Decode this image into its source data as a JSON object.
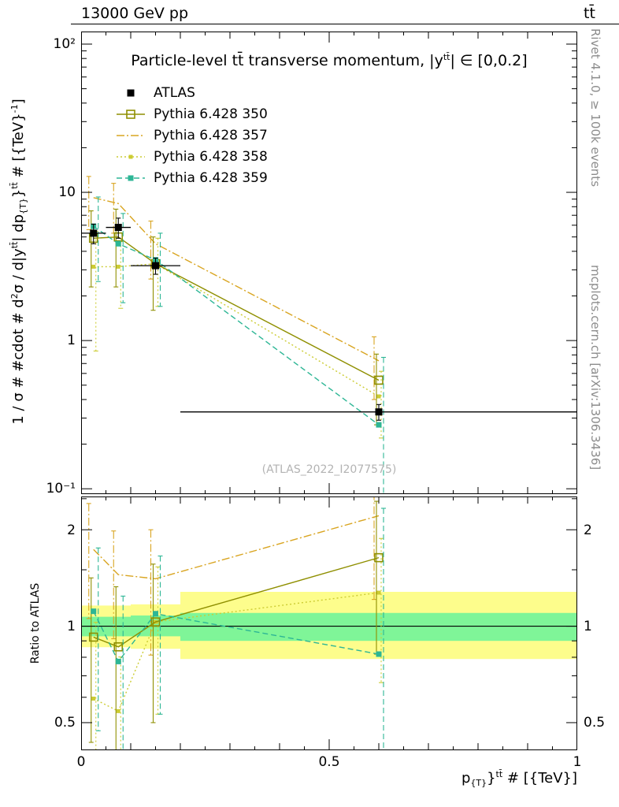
{
  "header": {
    "left": "13000 GeV pp",
    "right": "tt̄"
  },
  "side_notes": {
    "top": "Rivet 4.1.0, ≥ 100k events",
    "bottom": "mcplots.cern.ch [arXiv:1306.3436]"
  },
  "watermark": "(ATLAS_2022_I2077575)",
  "title_parts": {
    "p1": "Particle-level tt̄ transverse momentum, |y",
    "sup1": "tt̄",
    "p2": "| ∈ [0,0.2]"
  },
  "xlabel_parts": {
    "p1": "p",
    "sub1": "{T}",
    "p2": "}",
    "sup1": "tt̄",
    "p3": " # [{TeV}]"
  },
  "ylabel_parts": {
    "p1": "1 / σ # #cdot # d",
    "sup1": "2",
    "p2": "σ / d|y",
    "sup2": "tt̄",
    "p3": "| dp",
    "sub1": "{T}",
    "p4": "}",
    "sup3": "tt̄",
    "p5": " # [{TeV}",
    "sup4": "-1",
    "p6": "]"
  },
  "ratio_ylabel": "Ratio to ATLAS",
  "axes": {
    "main_yticks": [
      "10²",
      "10",
      "1",
      "10⁻¹"
    ],
    "ratio_ytick_labels": [
      "2",
      "1",
      "0.5"
    ],
    "xticks": [
      "0",
      "0.5",
      "1"
    ]
  },
  "chart_data": {
    "type": "line",
    "title": "Particle-level tt̄ transverse momentum, |y^tt̄| ∈ [0,0.2]",
    "xlabel": "p_{T}^tt̄ # [{TeV}]",
    "ylabel": "1 / σ d²σ / d|y^tt̄| dp_{T}^tt̄ # [{TeV}^-1]",
    "ratio_label": "Ratio to ATLAS",
    "x": [
      0.025,
      0.075,
      0.15,
      0.6
    ],
    "bin_edges": [
      0,
      0.05,
      0.1,
      0.2,
      1.0
    ],
    "xlim": [
      0,
      1
    ],
    "main_ylim_log": [
      0.092,
      121.6
    ],
    "ratio_ylim_log": [
      0.41,
      2.54
    ],
    "ratio_yticks": [
      0.5,
      1,
      2
    ],
    "legend_position": "top-left",
    "series": [
      {
        "name": "ATLAS",
        "color": "#000000",
        "marker": "square-filled",
        "line": "none",
        "values": [
          5.3,
          5.8,
          3.2,
          0.33
        ],
        "yerr": [
          0.8,
          0.9,
          0.4,
          0.04
        ]
      },
      {
        "name": "Pythia 6.428 350",
        "color": "#8f8f00",
        "marker": "square-open",
        "line": "solid",
        "values": [
          4.9,
          5.0,
          3.3,
          0.54
        ],
        "yerr": [
          2.6,
          2.7,
          1.7,
          0.27
        ]
      },
      {
        "name": "Pythia 6.428 357",
        "color": "#d9a521",
        "marker": "none",
        "line": "dashdot",
        "values": [
          9.2,
          8.4,
          4.5,
          0.73
        ],
        "yerr": [
          3.6,
          3.1,
          1.9,
          0.33
        ]
      },
      {
        "name": "Pythia 6.428 358",
        "color": "#cccc33",
        "marker": "square-small",
        "line": "dotted",
        "values": [
          3.15,
          3.15,
          3.3,
          0.42
        ],
        "yerr": [
          2.3,
          1.5,
          1.6,
          0.2
        ]
      },
      {
        "name": "Pythia 6.428 359",
        "color": "#2db695",
        "marker": "square-filled-small",
        "line": "dashed",
        "values": [
          5.9,
          4.5,
          3.5,
          0.27
        ],
        "yerr": [
          3.4,
          2.7,
          1.8,
          0.5
        ]
      }
    ],
    "ratio_bands": {
      "edges": [
        0,
        0.05,
        0.1,
        0.2,
        1.0
      ],
      "yellow": [
        [
          0.86,
          1.16
        ],
        [
          0.86,
          1.16
        ],
        [
          0.85,
          1.17
        ],
        [
          0.79,
          1.28
        ]
      ],
      "green": [
        [
          0.93,
          1.07
        ],
        [
          0.93,
          1.07
        ],
        [
          0.93,
          1.08
        ],
        [
          0.9,
          1.1
        ]
      ]
    },
    "band_colors": {
      "yellow": "#fdfd8c",
      "green": "#7ff598"
    }
  }
}
